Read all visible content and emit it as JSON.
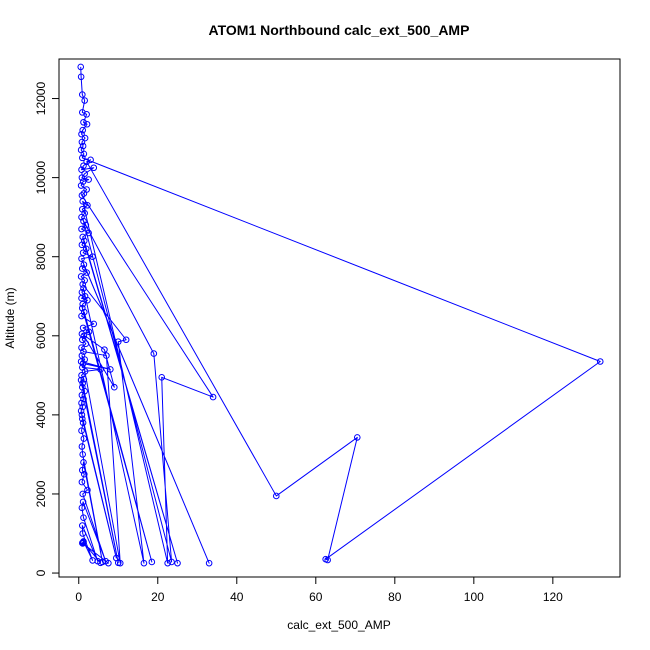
{
  "chart_data": {
    "type": "line",
    "title": "ATOM1 Northbound calc_ext_500_AMP",
    "xlabel": "calc_ext_500_AMP",
    "ylabel": "Altitude (m)",
    "xlim": [
      -5,
      137
    ],
    "ylim": [
      -100,
      13000
    ],
    "xticks": [
      0,
      20,
      40,
      60,
      80,
      100,
      120
    ],
    "yticks": [
      0,
      2000,
      4000,
      6000,
      8000,
      10000,
      12000
    ],
    "xtick_labels": [
      "0",
      "20",
      "40",
      "60",
      "80",
      "100",
      "120"
    ],
    "ytick_labels": [
      "0",
      "2000",
      "4000",
      "6000",
      "8000",
      "10000",
      "12000"
    ],
    "grid": false,
    "series": [
      {
        "color": "#0000ff",
        "marker": "open-circle",
        "points": [
          [
            0.5,
            12800
          ],
          [
            0.6,
            12550
          ],
          [
            0.9,
            12100
          ],
          [
            1.5,
            11950
          ],
          [
            0.9,
            11650
          ],
          [
            2.0,
            11600
          ],
          [
            1.2,
            11400
          ],
          [
            2.1,
            11350
          ],
          [
            1.0,
            11200
          ],
          [
            0.7,
            11100
          ],
          [
            1.6,
            11000
          ],
          [
            0.8,
            10900
          ],
          [
            1.1,
            10800
          ],
          [
            0.6,
            10700
          ],
          [
            1.3,
            10600
          ],
          [
            0.9,
            10500
          ],
          [
            132.0,
            5350
          ],
          [
            62.5,
            350
          ],
          [
            63.0,
            330
          ],
          [
            70.5,
            3430
          ],
          [
            50.0,
            1950
          ],
          [
            2.0,
            10400
          ],
          [
            3.0,
            10450
          ],
          [
            1.2,
            10300
          ],
          [
            0.7,
            10200
          ],
          [
            3.8,
            10250
          ],
          [
            1.5,
            10100
          ],
          [
            0.8,
            10000
          ],
          [
            2.5,
            9950
          ],
          [
            1.1,
            9900
          ],
          [
            0.6,
            9800
          ],
          [
            2.0,
            9700
          ],
          [
            1.3,
            9600
          ],
          [
            0.8,
            9550
          ],
          [
            34.0,
            4450
          ],
          [
            21.0,
            4950
          ],
          [
            22.5,
            250
          ],
          [
            1.0,
            9400
          ],
          [
            2.2,
            9300
          ],
          [
            0.9,
            9200
          ],
          [
            1.5,
            9100
          ],
          [
            0.7,
            9000
          ],
          [
            19.0,
            5550
          ],
          [
            23.5,
            280
          ],
          [
            1.2,
            8900
          ],
          [
            1.8,
            8800
          ],
          [
            0.7,
            8700
          ],
          [
            2.5,
            8600
          ],
          [
            1.0,
            8500
          ],
          [
            25.0,
            250
          ],
          [
            1.4,
            8400
          ],
          [
            0.8,
            8300
          ],
          [
            1.9,
            8200
          ],
          [
            1.1,
            8100
          ],
          [
            3.5,
            8000
          ],
          [
            0.7,
            7950
          ],
          [
            33.0,
            250
          ],
          [
            1.3,
            7800
          ],
          [
            0.9,
            7700
          ],
          [
            2.0,
            7600
          ],
          [
            0.6,
            7500
          ],
          [
            1.5,
            7400
          ],
          [
            1.0,
            7300
          ],
          [
            12.0,
            5900
          ],
          [
            10.0,
            5850
          ],
          [
            16.5,
            250
          ],
          [
            1.2,
            7200
          ],
          [
            0.8,
            7100
          ],
          [
            1.6,
            7000
          ],
          [
            0.7,
            6950
          ],
          [
            2.2,
            6900
          ],
          [
            1.0,
            6800
          ],
          [
            0.9,
            6700
          ],
          [
            18.5,
            280
          ],
          [
            1.4,
            6600
          ],
          [
            0.7,
            6500
          ],
          [
            3.8,
            6300
          ],
          [
            1.1,
            6200
          ],
          [
            2.6,
            6100
          ],
          [
            0.8,
            6050
          ],
          [
            6.5,
            5650
          ],
          [
            9.0,
            4700
          ],
          [
            1.3,
            6000
          ],
          [
            0.9,
            5900
          ],
          [
            1.8,
            5800
          ],
          [
            0.7,
            5700
          ],
          [
            1.2,
            5600
          ],
          [
            7.0,
            5500
          ],
          [
            10.5,
            250
          ],
          [
            0.8,
            5500
          ],
          [
            1.5,
            5400
          ],
          [
            0.6,
            5350
          ],
          [
            8.0,
            5150
          ],
          [
            1.1,
            5300
          ],
          [
            0.9,
            5200
          ],
          [
            5.5,
            5150
          ],
          [
            1.6,
            5100
          ],
          [
            0.7,
            5000
          ],
          [
            1.3,
            4900
          ],
          [
            0.6,
            4880
          ],
          [
            10.0,
            260
          ],
          [
            1.0,
            4800
          ],
          [
            0.9,
            4700
          ],
          [
            1.5,
            4600
          ],
          [
            0.8,
            4500
          ],
          [
            1.2,
            4400
          ],
          [
            0.7,
            4300
          ],
          [
            1.0,
            4200
          ],
          [
            0.6,
            4100
          ],
          [
            0.8,
            4000
          ],
          [
            9.5,
            380
          ],
          [
            0.9,
            3900
          ],
          [
            1.1,
            3800
          ],
          [
            0.7,
            3600
          ],
          [
            1.3,
            3400
          ],
          [
            0.8,
            3200
          ],
          [
            1.0,
            3000
          ],
          [
            6.0,
            280
          ],
          [
            1.2,
            2800
          ],
          [
            0.9,
            2600
          ],
          [
            1.4,
            2500
          ],
          [
            0.8,
            2300
          ],
          [
            2.2,
            2100
          ],
          [
            1.0,
            2000
          ],
          [
            6.8,
            300
          ],
          [
            1.1,
            1800
          ],
          [
            0.8,
            1650
          ],
          [
            1.2,
            1400
          ],
          [
            4.8,
            300
          ],
          [
            0.9,
            1200
          ],
          [
            1.0,
            1000
          ],
          [
            3.5,
            320
          ],
          [
            1.2,
            800
          ],
          [
            0.9,
            760
          ],
          [
            7.5,
            250
          ],
          [
            1.0,
            750
          ],
          [
            1.1,
            780
          ],
          [
            5.5,
            260
          ],
          [
            1.2,
            770
          ]
        ]
      }
    ]
  }
}
